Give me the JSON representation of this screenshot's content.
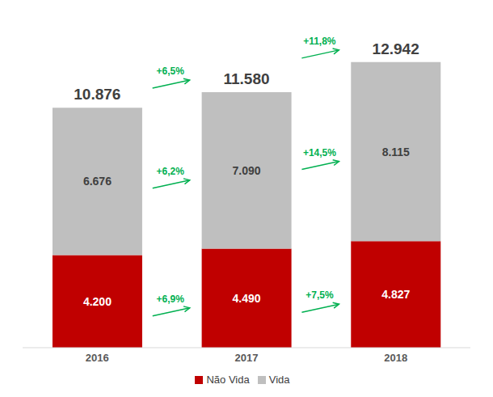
{
  "chart_data": {
    "type": "bar",
    "stacked": true,
    "data_labels": true,
    "tick_labels": "x",
    "legend": "bottom",
    "categories": [
      "2016",
      "2017",
      "2018"
    ],
    "ylim": [
      0,
      14000
    ],
    "series": [
      {
        "name": "Não Vida",
        "color": "#c00000",
        "values": [
          4200,
          4490,
          4827
        ],
        "value_labels": [
          "4.200",
          "4.490",
          "4.827"
        ],
        "growth_labels": [
          "+6,9%",
          "+7,5%"
        ]
      },
      {
        "name": "Vida",
        "color": "#bfbfbf",
        "values": [
          6676,
          7090,
          8115
        ],
        "value_labels": [
          "6.676",
          "7.090",
          "8.115"
        ],
        "growth_labels": [
          "+6,2%",
          "+14,5%"
        ]
      }
    ],
    "totals": [
      10876,
      11580,
      12942
    ],
    "total_labels": [
      "10.876",
      "11.580",
      "12.942"
    ],
    "total_growth_labels": [
      "+6,5%",
      "+11,8%"
    ]
  }
}
